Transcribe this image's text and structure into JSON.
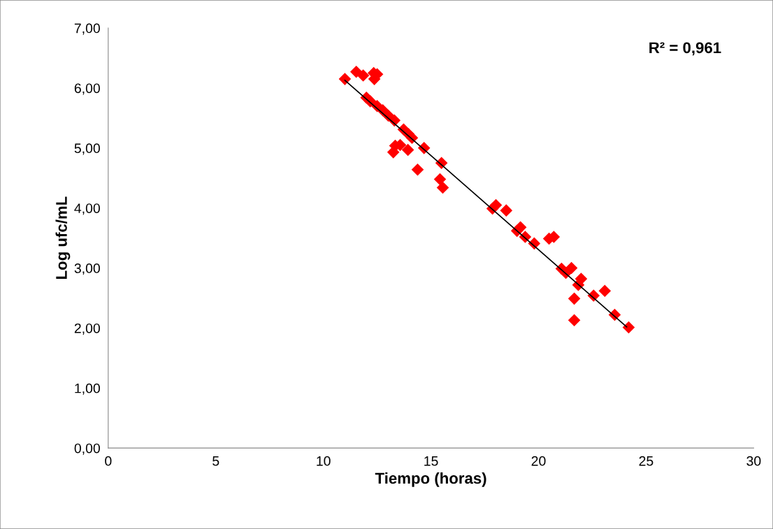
{
  "chart_data": {
    "type": "scatter",
    "xlabel": "Tiempo (horas)",
    "ylabel": "Log ufc/mL",
    "annotations": [
      "R² = 0,961"
    ],
    "xlim": [
      0,
      30
    ],
    "xticks": [
      0,
      5,
      10,
      15,
      20,
      25,
      30
    ],
    "ylim": [
      0,
      7
    ],
    "yticks": [
      {
        "value": 0,
        "label": "0,00"
      },
      {
        "value": 1,
        "label": "1,00"
      },
      {
        "value": 2,
        "label": "2,00"
      },
      {
        "value": 3,
        "label": "3,00"
      },
      {
        "value": 4,
        "label": "4,00"
      },
      {
        "value": 5,
        "label": "5,00"
      },
      {
        "value": 6,
        "label": "6,00"
      },
      {
        "value": 7,
        "label": "7,00"
      }
    ],
    "grid": false,
    "series": [
      {
        "marker": "diamond",
        "color": "#ff0000",
        "x": [
          11.0,
          11.53,
          11.85,
          12.34,
          12.5,
          12.37,
          12.0,
          12.18,
          12.5,
          12.76,
          13.02,
          13.3,
          13.73,
          13.96,
          14.12,
          13.34,
          13.25,
          13.57,
          13.93,
          14.68,
          14.38,
          15.49,
          15.42,
          15.55,
          18.02,
          17.86,
          18.5,
          19.16,
          19.0,
          19.38,
          19.8,
          20.49,
          20.71,
          21.07,
          21.27,
          21.53,
          21.98,
          21.85,
          21.66,
          21.66,
          22.56,
          23.08,
          23.54,
          24.19
        ],
        "values": [
          6.15,
          6.27,
          6.21,
          6.25,
          6.23,
          6.15,
          5.84,
          5.78,
          5.7,
          5.63,
          5.54,
          5.46,
          5.31,
          5.23,
          5.17,
          5.04,
          4.93,
          5.05,
          4.97,
          5.0,
          4.64,
          4.75,
          4.48,
          4.34,
          4.05,
          3.99,
          3.96,
          3.68,
          3.62,
          3.52,
          3.41,
          3.49,
          3.52,
          2.99,
          2.92,
          3.0,
          2.82,
          2.72,
          2.49,
          2.13,
          2.54,
          2.62,
          2.22,
          2.01
        ]
      },
      {
        "type": "line",
        "color": "#000000",
        "x": [
          11.0,
          24.1
        ],
        "values": [
          6.13,
          2.02
        ]
      }
    ]
  }
}
